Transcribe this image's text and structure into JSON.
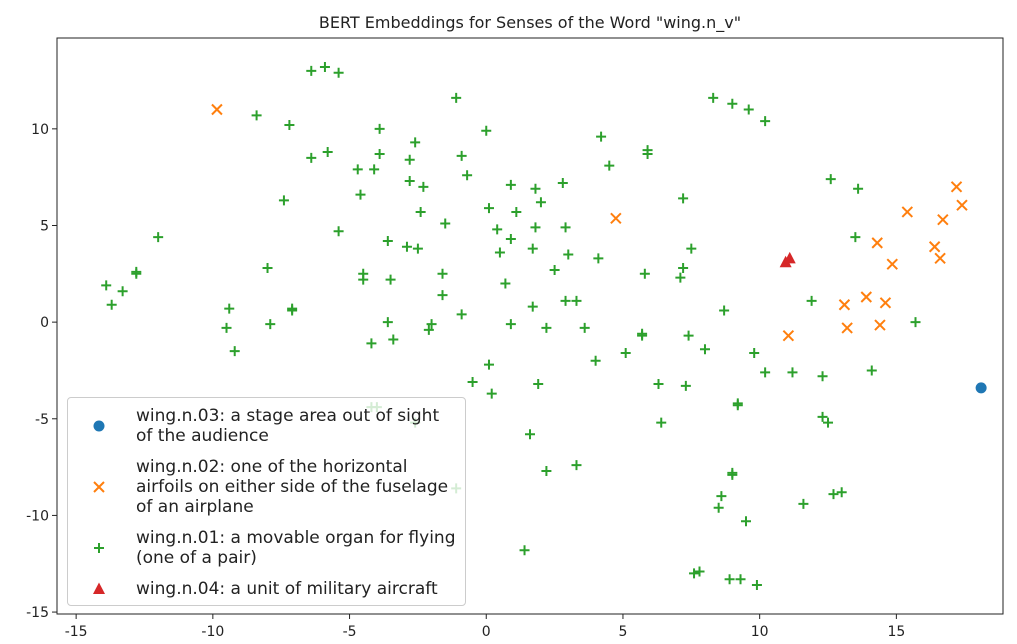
{
  "chart_data": {
    "type": "scatter",
    "title": "BERT Embeddings for Senses of the Word \"wing.n_v\"",
    "xlim": [
      -15.7,
      18.9
    ],
    "ylim": [
      -15.1,
      14.7
    ],
    "xticks": [
      -15,
      -10,
      -5,
      0,
      5,
      10,
      15
    ],
    "yticks": [
      -15,
      -10,
      -5,
      0,
      5,
      10
    ],
    "legend": "lower left",
    "grid": false,
    "series": [
      {
        "name": "wing.n.03: a stage area out of sight of the audience",
        "color": "#1f77b4",
        "marker": "o",
        "x": [
          18.1
        ],
        "values": [
          -3.4
        ]
      },
      {
        "name": "wing.n.02: one of the horizontal airfoils on either side of the fuselage of an airplane",
        "color": "#ff7f0e",
        "marker": "x",
        "x": [
          -9.85,
          4.74,
          17.2,
          17.4,
          15.4,
          16.7,
          14.3,
          16.4,
          16.6,
          14.85,
          13.9,
          14.6,
          13.1,
          13.2,
          14.4,
          11.05
        ],
        "values": [
          11.0,
          5.37,
          7.0,
          6.05,
          5.7,
          5.3,
          4.1,
          3.9,
          3.3,
          3.0,
          1.3,
          1.0,
          0.9,
          -0.3,
          -0.15,
          -0.7
        ]
      },
      {
        "name": "wing.n.01: a movable organ for flying (one of a pair)",
        "color": "#2ca02c",
        "marker": "+",
        "x": [
          -6.4,
          -5.9,
          -5.4,
          -1.1,
          8.3,
          9.0,
          9.6,
          10.2,
          -8.4,
          -7.2,
          -3.9,
          0.0,
          -2.6,
          4.2,
          5.9,
          5.9,
          -6.4,
          -5.8,
          -3.9,
          -4.7,
          -4.1,
          -2.8,
          -2.8,
          -0.9,
          -0.7,
          4.5,
          12.6,
          13.6,
          0.9,
          1.8,
          2.8,
          -4.6,
          -2.3,
          -7.4,
          7.2,
          2.0,
          0.1,
          1.1,
          -2.4,
          -1.5,
          2.9,
          1.8,
          0.4,
          0.9,
          -5.4,
          -12.0,
          -3.6,
          -2.9,
          -2.5,
          0.5,
          7.5,
          13.5,
          3.0,
          1.7,
          4.1,
          -8.0,
          -4.5,
          -4.5,
          2.5,
          -1.6,
          -3.5,
          7.2,
          7.1,
          5.8,
          -12.8,
          -12.8,
          -13.9,
          -13.3,
          -13.7,
          -1.6,
          0.7,
          11.9,
          -9.4,
          -7.1,
          -7.1,
          -0.9,
          1.7,
          2.9,
          3.3,
          8.7,
          -7.9,
          -9.5,
          -2.0,
          0.9,
          2.2,
          3.6,
          5.7,
          5.7,
          7.4,
          15.7,
          -2.1,
          -3.6,
          -3.4,
          -9.2,
          -4.2,
          8.0,
          9.8,
          4.0,
          5.1,
          0.1,
          -0.5,
          0.2,
          1.9,
          6.3,
          7.3,
          10.2,
          11.2,
          12.3,
          14.1,
          9.2,
          9.2,
          -4.2,
          -4.0,
          -2.6,
          12.3,
          12.5,
          6.4,
          1.6,
          2.2,
          3.3,
          -1.1,
          9.0,
          9.0,
          12.7,
          13.0,
          8.6,
          8.5,
          11.6,
          9.5,
          1.4,
          7.6,
          7.8,
          8.9,
          9.3,
          9.9
        ],
        "values": [
          13.0,
          13.2,
          12.9,
          11.6,
          11.6,
          11.3,
          11.0,
          10.4,
          10.7,
          10.2,
          10.0,
          9.9,
          9.3,
          9.6,
          8.9,
          8.7,
          8.5,
          8.8,
          8.7,
          7.9,
          7.9,
          8.4,
          7.3,
          8.6,
          7.6,
          8.1,
          7.4,
          6.9,
          7.1,
          6.9,
          7.2,
          6.6,
          7.0,
          6.3,
          6.4,
          6.2,
          5.9,
          5.7,
          5.7,
          5.1,
          4.9,
          4.9,
          4.8,
          4.3,
          4.7,
          4.4,
          4.2,
          3.9,
          3.8,
          3.6,
          3.8,
          4.4,
          3.5,
          3.8,
          3.3,
          2.8,
          2.5,
          2.2,
          2.7,
          2.5,
          2.2,
          2.8,
          2.3,
          2.5,
          2.6,
          2.5,
          1.9,
          1.6,
          0.9,
          1.4,
          2.0,
          1.1,
          0.7,
          0.7,
          0.6,
          0.4,
          0.8,
          1.1,
          1.1,
          0.6,
          -0.1,
          -0.3,
          -0.1,
          -0.1,
          -0.3,
          -0.3,
          -0.6,
          -0.7,
          -0.7,
          0.0,
          -0.4,
          0.0,
          -0.9,
          -1.5,
          -1.1,
          -1.4,
          -1.6,
          -2.0,
          -1.6,
          -2.2,
          -3.1,
          -3.7,
          -3.2,
          -3.2,
          -3.3,
          -2.6,
          -2.6,
          -2.8,
          -2.5,
          -4.2,
          -4.3,
          -4.4,
          -4.4,
          -5.2,
          -4.9,
          -5.2,
          -5.2,
          -5.8,
          -7.7,
          -7.4,
          -8.6,
          -7.9,
          -7.8,
          -8.9,
          -8.8,
          -9.0,
          -9.6,
          -9.4,
          -10.3,
          -11.8,
          -13.0,
          -12.9,
          -13.3,
          -13.3,
          -13.6
        ]
      },
      {
        "name": "wing.n.04: a unit of military aircraft",
        "color": "#d62728",
        "marker": "^",
        "x": [
          10.95,
          11.1
        ],
        "values": [
          3.1,
          3.3
        ]
      }
    ]
  }
}
